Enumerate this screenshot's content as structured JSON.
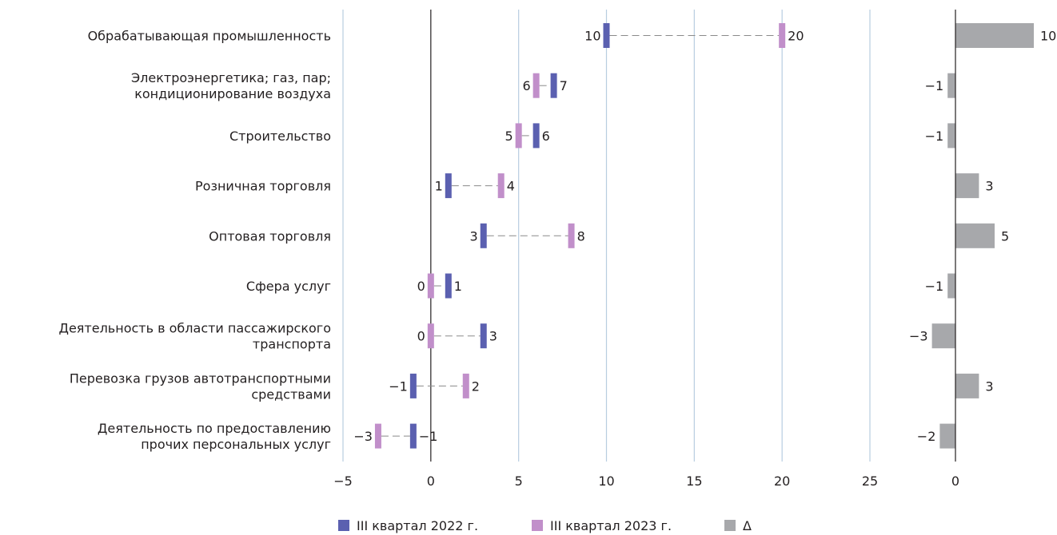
{
  "chart_data": {
    "type": "dot-range-with-delta-bars",
    "categories": [
      [
        "Обрабатывающая промышленность"
      ],
      [
        "Электроэнергетика; газ, пар;",
        "кондиционирование воздуха"
      ],
      [
        "Строительство"
      ],
      [
        "Розничная торговля"
      ],
      [
        "Оптовая торговля"
      ],
      [
        "Сфера услуг"
      ],
      [
        "Деятельность в области пассажирского",
        "транспорта"
      ],
      [
        "Перевозка грузов автотранспортными",
        "средствами"
      ],
      [
        "Деятельность по предоставлению",
        "прочих персональных услуг"
      ]
    ],
    "series": [
      {
        "name": "III квартал 2022 г.",
        "color": "#5b60b0",
        "values": [
          10,
          7,
          6,
          1,
          3,
          1,
          3,
          -1,
          -1
        ]
      },
      {
        "name": "III квартал 2023 г.",
        "color": "#c18fca",
        "values": [
          20,
          6,
          5,
          4,
          8,
          0,
          0,
          2,
          -3
        ]
      }
    ],
    "delta": {
      "name": "Δ",
      "color": "#a7a8ab",
      "values": [
        10,
        -1,
        -1,
        3,
        5,
        -1,
        -3,
        3,
        -2
      ]
    },
    "main_axis": {
      "min": -5,
      "max": 25,
      "ticks": [
        -5,
        0,
        5,
        10,
        15,
        20,
        25
      ]
    },
    "delta_axis": {
      "ticks": [
        0
      ]
    },
    "gridline_color": "#b8cde0",
    "connector_color": "#8a8a8a",
    "legend_position": "bottom"
  }
}
